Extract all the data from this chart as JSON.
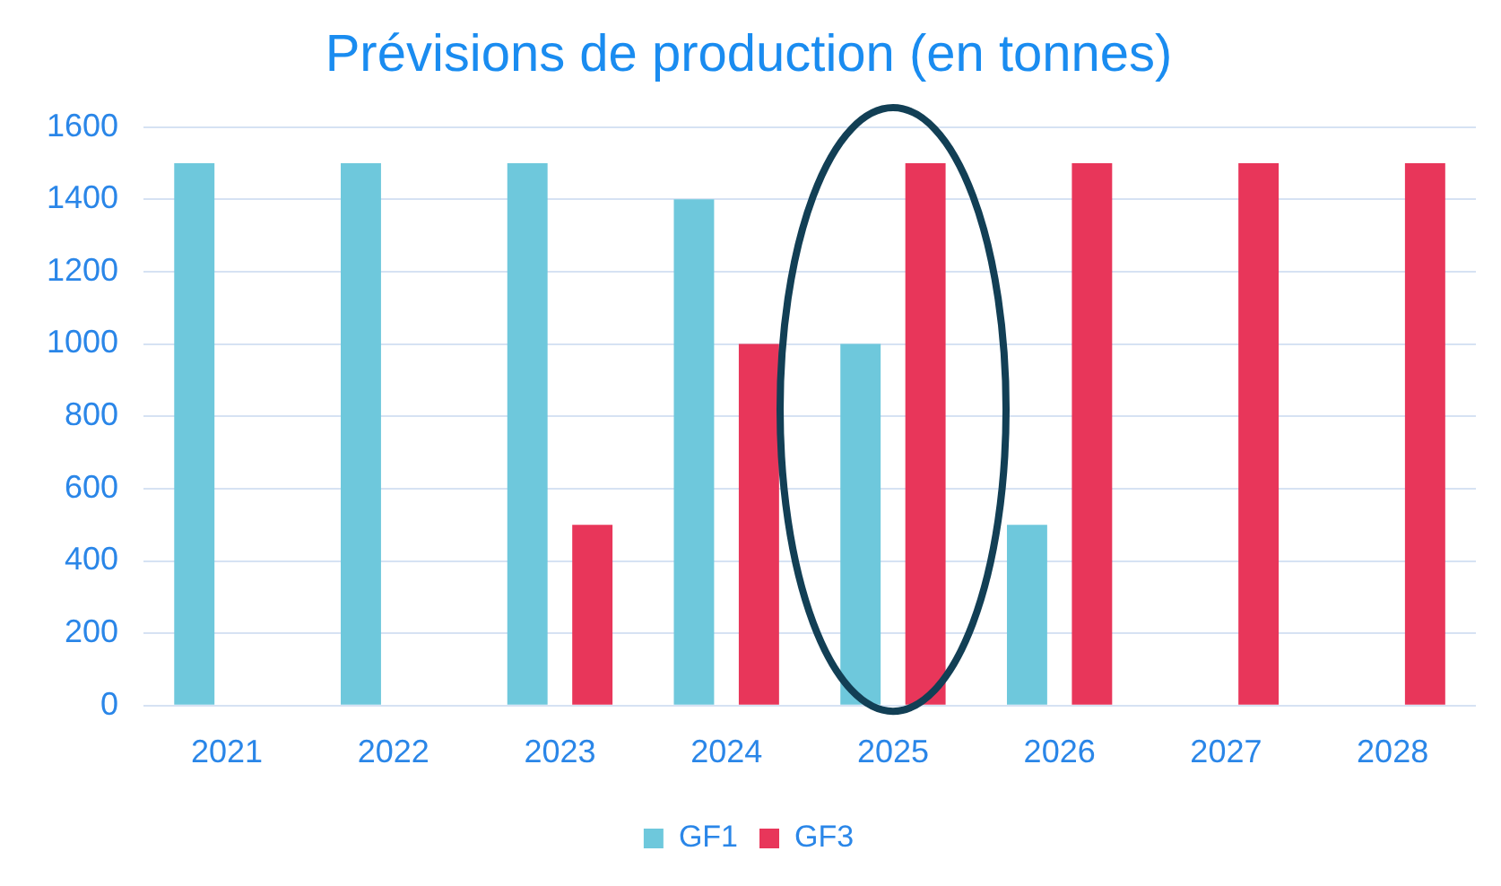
{
  "chart_data": {
    "type": "bar",
    "title": "Prévisions de production (en tonnes)",
    "categories": [
      "2021",
      "2022",
      "2023",
      "2024",
      "2025",
      "2026",
      "2027",
      "2028"
    ],
    "series": [
      {
        "name": "GF1",
        "color": "#6ec8dc",
        "values": [
          1500,
          1500,
          1500,
          1400,
          1000,
          500,
          0,
          0
        ]
      },
      {
        "name": "GF3",
        "color": "#e8365a",
        "values": [
          0,
          0,
          500,
          1000,
          1500,
          1500,
          1500,
          1500
        ]
      }
    ],
    "ylim": [
      0,
      1600
    ],
    "yticks": [
      0,
      200,
      400,
      600,
      800,
      1000,
      1200,
      1400,
      1600
    ],
    "grid": "y",
    "legend": "bottom"
  }
}
